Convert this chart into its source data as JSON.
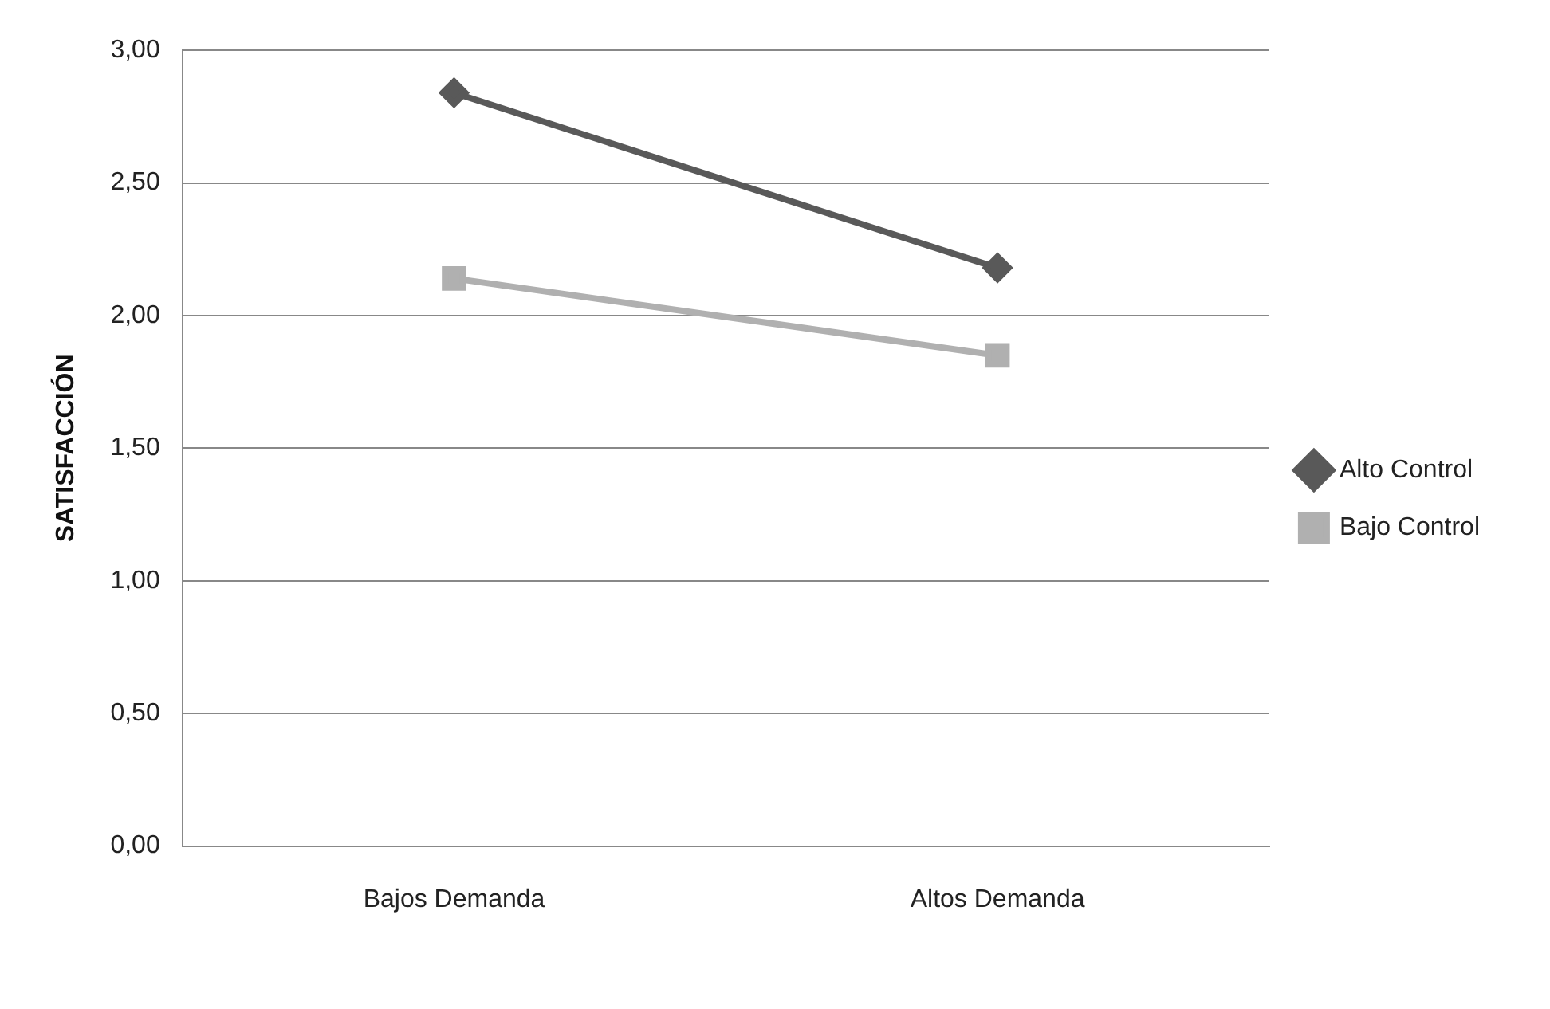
{
  "chart_data": {
    "type": "line",
    "ylabel": "SATISFACCIÓN",
    "categories": [
      "Bajos Demanda",
      "Altos Demanda"
    ],
    "series": [
      {
        "name": "Alto Control",
        "color": "#595959",
        "values": [
          2.84,
          2.18
        ],
        "marker": "diamond"
      },
      {
        "name": "Bajo Control",
        "color": "#b0b0b0",
        "values": [
          2.14,
          1.85
        ],
        "marker": "square"
      }
    ],
    "ylim": [
      0,
      3
    ],
    "yticks": [
      {
        "value": 0,
        "label": "0,00"
      },
      {
        "value": 0.5,
        "label": "0,50"
      },
      {
        "value": 1,
        "label": "1,00"
      },
      {
        "value": 1.5,
        "label": "1,50"
      },
      {
        "value": 2,
        "label": "2,00"
      },
      {
        "value": 2.5,
        "label": "2,50"
      },
      {
        "value": 3,
        "label": "3,00"
      }
    ],
    "grid": "y",
    "legend": "right",
    "line_style": "solid"
  }
}
